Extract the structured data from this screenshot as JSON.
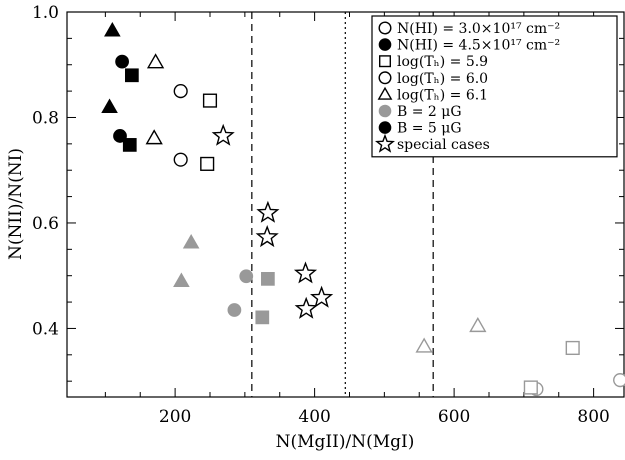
{
  "chart_data": {
    "type": "scatter",
    "xlabel": "N(MgII)/N(MgI)",
    "ylabel": "N(NII)/N(NI)",
    "xlim": [
      45,
      845
    ],
    "ylim": [
      0.27,
      1.0
    ],
    "x_ticks": [
      200,
      400,
      600,
      800
    ],
    "y_ticks": [
      0.4,
      0.6,
      0.8,
      1.0
    ],
    "y_tick_labels": [
      "0.4",
      "0.6",
      "0.8",
      "1.0"
    ],
    "grid": false,
    "legend_position": "top-right",
    "legend": [
      {
        "marker": "circle-open",
        "color": "#000000",
        "text": "N(HI) = 3.0×10¹⁷ cm⁻²"
      },
      {
        "marker": "circle-filled",
        "color": "#000000",
        "text": "N(HI) = 4.5×10¹⁷ cm⁻²"
      },
      {
        "marker": "square-open",
        "color": "#000000",
        "text": "log(Tₕ) = 5.9"
      },
      {
        "marker": "circle-open",
        "color": "#000000",
        "text": "log(Tₕ) = 6.0"
      },
      {
        "marker": "triangle-open",
        "color": "#000000",
        "text": "log(Tₕ) = 6.1"
      },
      {
        "marker": "circle-filled",
        "color": "#999999",
        "text": "B = 2 μG"
      },
      {
        "marker": "circle-filled",
        "color": "#000000",
        "text": "B = 5 μG"
      },
      {
        "marker": "star-open",
        "color": "#000000",
        "text": "special cases"
      }
    ],
    "vertical_lines": [
      {
        "x": 310,
        "style": "dashed"
      },
      {
        "x": 444,
        "style": "dotted"
      },
      {
        "x": 570,
        "style": "dashed"
      }
    ],
    "colors": {
      "black": "#000000",
      "gray": "#999999"
    },
    "series": [
      {
        "marker": "triangle-filled",
        "color": "#000000",
        "points": [
          [
            110,
            0.965
          ],
          [
            106,
            0.82
          ]
        ]
      },
      {
        "marker": "circle-filled",
        "color": "#000000",
        "points": [
          [
            124,
            0.906
          ],
          [
            121,
            0.765
          ]
        ]
      },
      {
        "marker": "square-filled",
        "color": "#000000",
        "points": [
          [
            138,
            0.88
          ],
          [
            135,
            0.748
          ]
        ]
      },
      {
        "marker": "triangle-open",
        "color": "#000000",
        "points": [
          [
            172,
            0.905
          ],
          [
            170,
            0.761
          ]
        ]
      },
      {
        "marker": "circle-open",
        "color": "#000000",
        "points": [
          [
            208,
            0.85
          ],
          [
            208,
            0.72
          ]
        ]
      },
      {
        "marker": "square-open",
        "color": "#000000",
        "points": [
          [
            250,
            0.832
          ],
          [
            246,
            0.712
          ]
        ]
      },
      {
        "marker": "star-open",
        "color": "#000000",
        "points": [
          [
            269,
            0.765
          ],
          [
            333,
            0.619
          ],
          [
            332,
            0.573
          ],
          [
            387,
            0.504
          ],
          [
            388,
            0.437
          ],
          [
            410,
            0.458
          ]
        ]
      },
      {
        "marker": "triangle-filled",
        "color": "#999999",
        "points": [
          [
            223,
            0.563
          ],
          [
            209,
            0.49
          ]
        ]
      },
      {
        "marker": "circle-filled",
        "color": "#999999",
        "points": [
          [
            302,
            0.499
          ],
          [
            285,
            0.435
          ]
        ]
      },
      {
        "marker": "square-filled",
        "color": "#999999",
        "points": [
          [
            333,
            0.494
          ],
          [
            325,
            0.421
          ]
        ]
      },
      {
        "marker": "triangle-open",
        "color": "#999999",
        "points": [
          [
            557,
            0.366
          ],
          [
            634,
            0.405
          ]
        ]
      },
      {
        "marker": "circle-open",
        "color": "#999999",
        "points": [
          [
            718,
            0.285
          ],
          [
            838,
            0.302
          ]
        ]
      },
      {
        "marker": "square-open",
        "color": "#999999",
        "points": [
          [
            710,
            0.288
          ],
          [
            770,
            0.363
          ]
        ]
      }
    ]
  }
}
